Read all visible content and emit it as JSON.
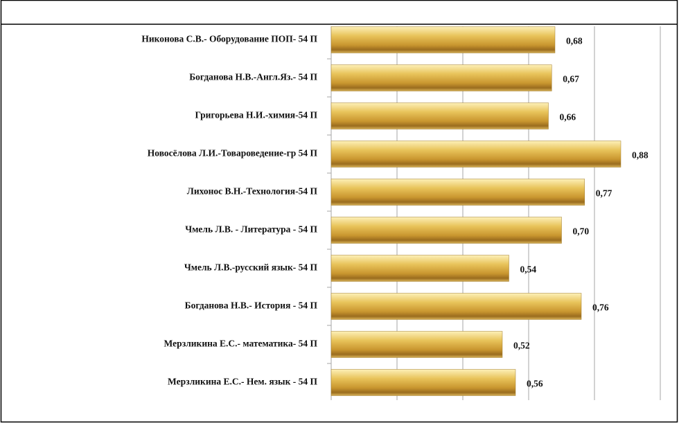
{
  "chart_data": {
    "type": "bar",
    "orientation": "horizontal",
    "categories": [
      "Никонова С.В.- Оборудование ПОП- 54 П",
      "Богданова Н.В.-Англ.Яз.- 54 П",
      "Григорьева Н.И.-химия-54 П",
      "Новосёлова Л.И.-Товароведение-гр 54 П",
      "Лихонос В.Н.-Технология-54 П",
      "Чмель Л.В. - Литература - 54 П",
      "Чмель Л.В.-русский язык- 54 П",
      "Богданова Н.В.- История - 54 П",
      "Мерзликина Е.С.- математика- 54 П",
      "Мерзликина Е.С.- Нем. язык - 54 П"
    ],
    "values": [
      0.68,
      0.67,
      0.66,
      0.88,
      0.77,
      0.7,
      0.54,
      0.76,
      0.52,
      0.56
    ],
    "value_labels": [
      "0,68",
      "0,67",
      "0,66",
      "0,88",
      "0,77",
      "0,70",
      "0,54",
      "0,76",
      "0,52",
      "0,56"
    ],
    "color": "#d4a83c",
    "xlim": [
      0,
      1
    ],
    "xticks": [
      0,
      0.2,
      0.4,
      0.6,
      0.8,
      1
    ],
    "grid": true
  }
}
